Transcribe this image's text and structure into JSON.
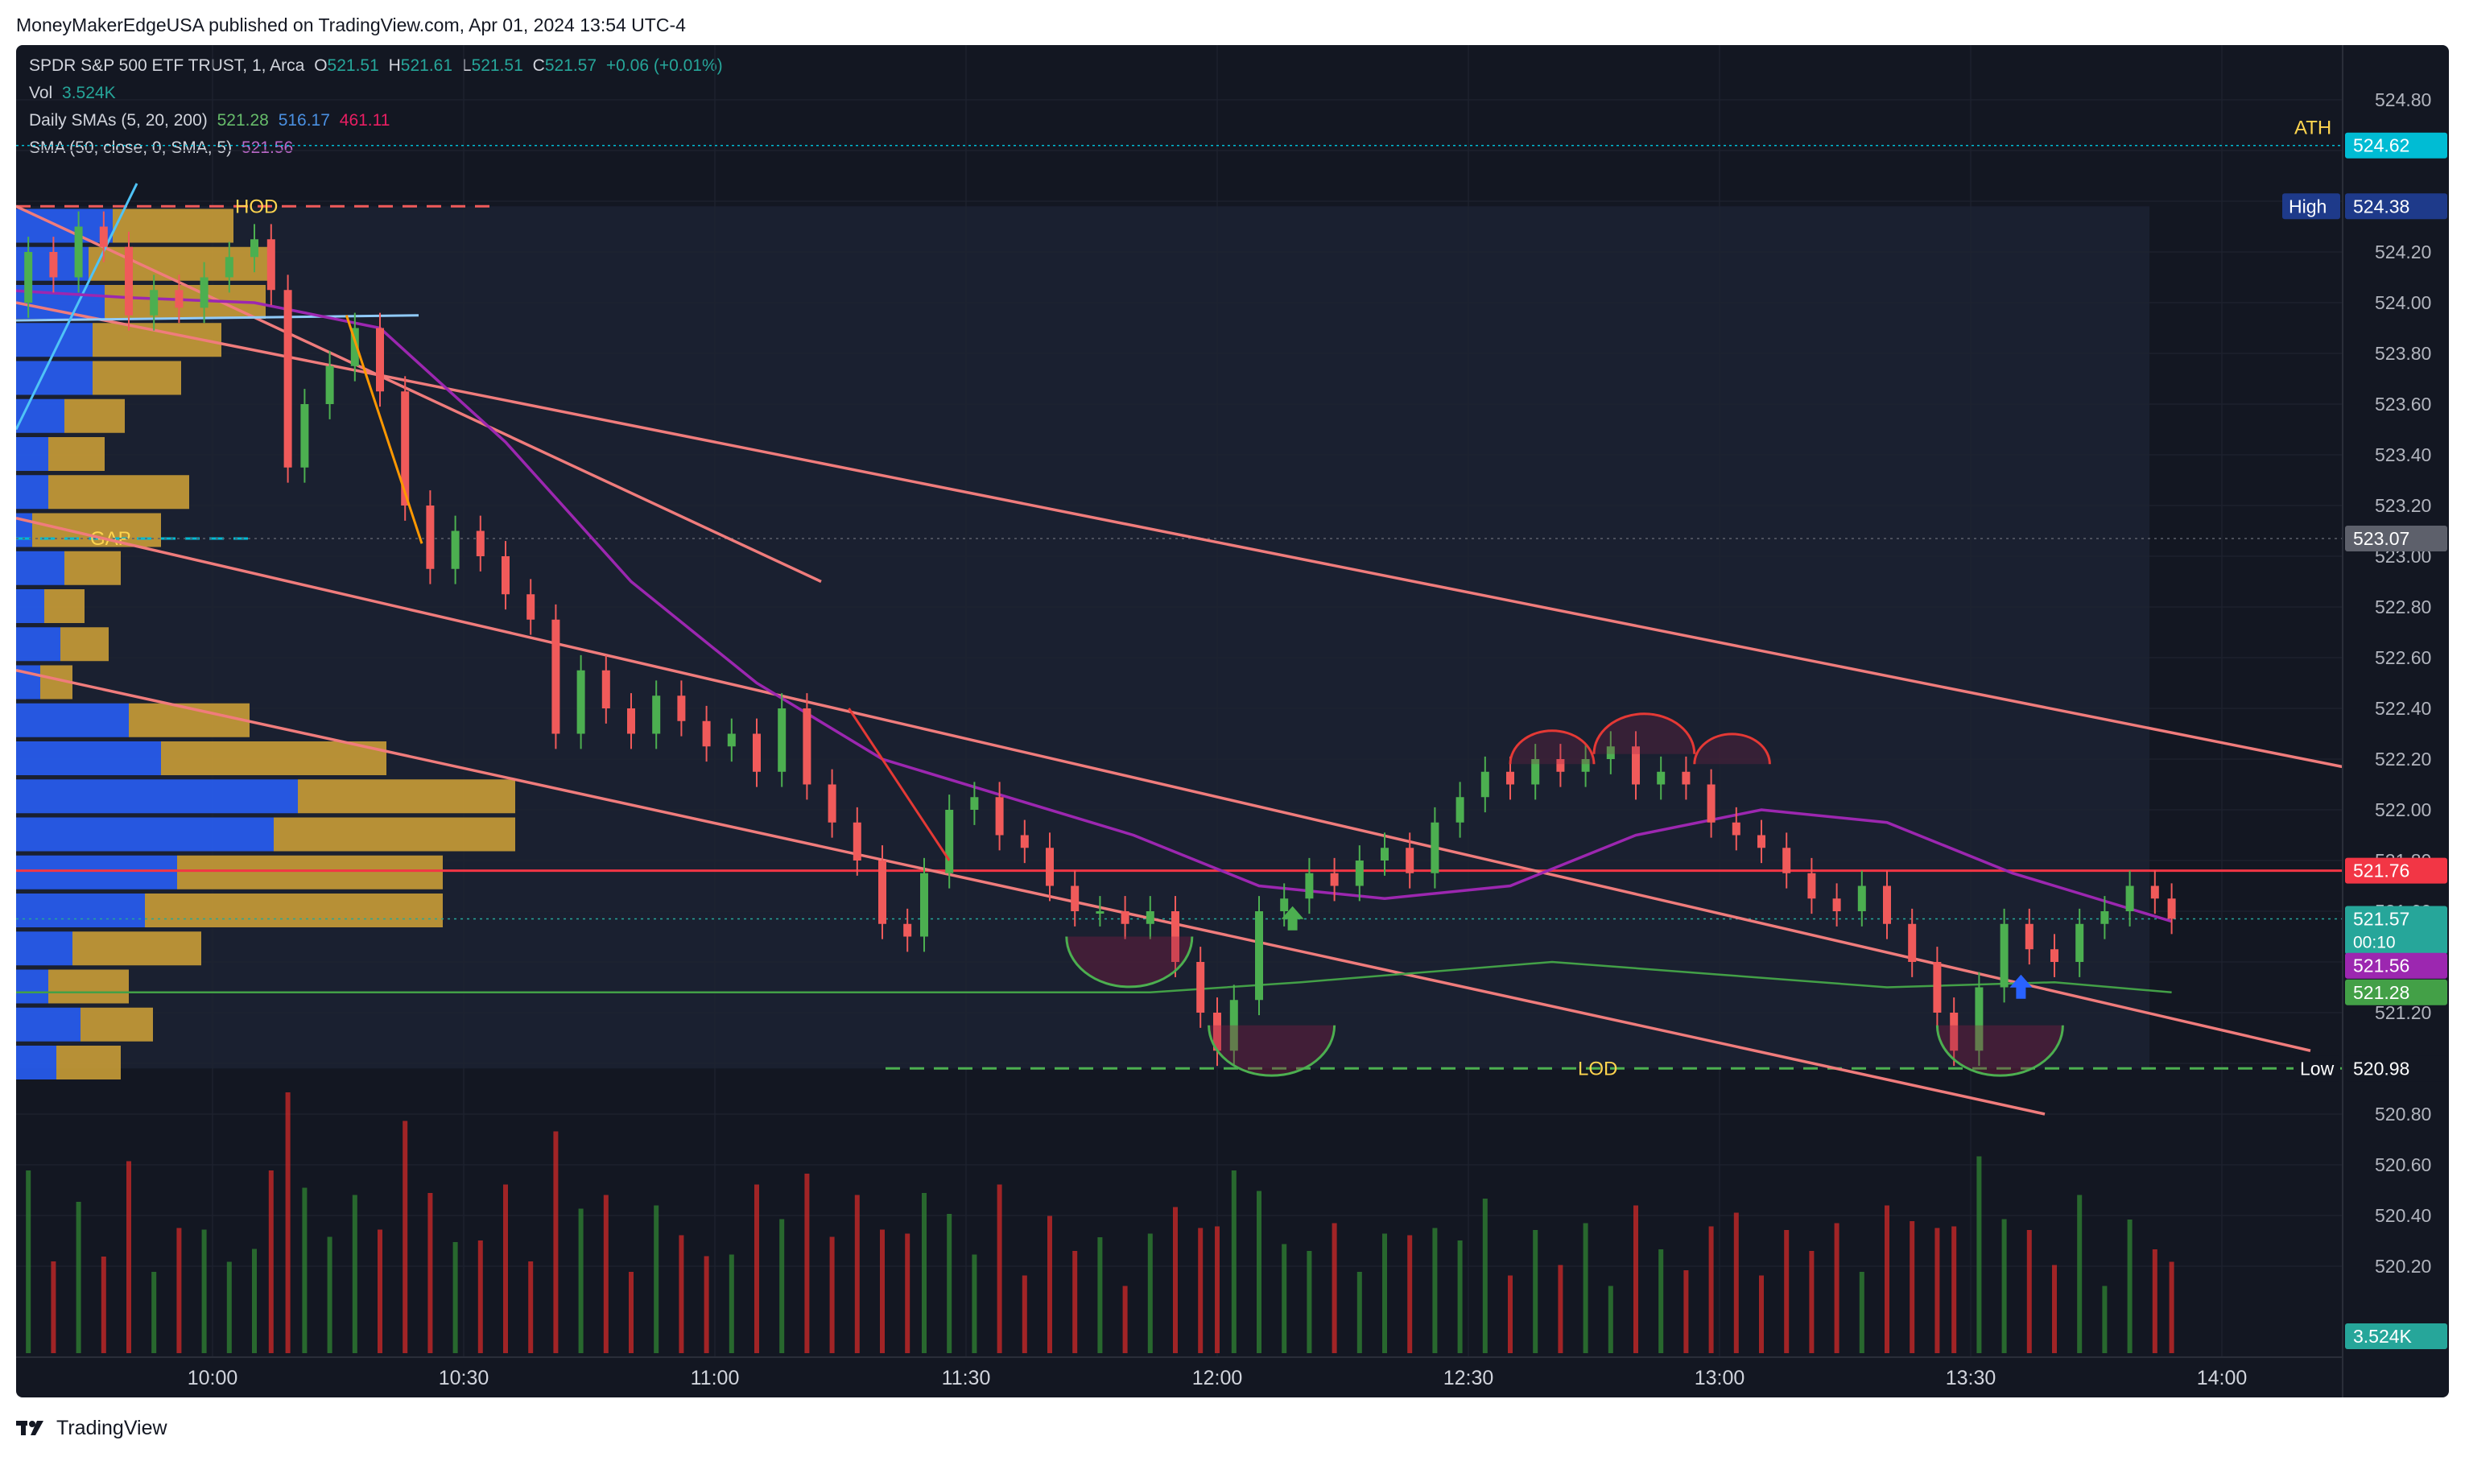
{
  "publisher_line": "MoneyMakerEdgeUSA published on TradingView.com, Apr 01, 2024 13:54 UTC-4",
  "legend": {
    "symbol": "SPDR S&P 500 ETF TRUST, 1, Arca",
    "ohlc": {
      "o_label": "O",
      "o": "521.51",
      "h_label": "H",
      "h": "521.61",
      "l_label": "L",
      "l": "521.51",
      "c_label": "C",
      "c": "521.57",
      "chg": "+0.06 (+0.01%)"
    },
    "vol_label": "Vol",
    "vol": "3.524K",
    "daily_smas_label": "Daily SMAs (5, 20, 200)",
    "daily_smas": [
      "521.28",
      "516.17",
      "461.11"
    ],
    "sma_label": "SMA (50, close, 0, SMA, 5)",
    "sma_value": "521.56"
  },
  "footer": {
    "brand": "TradingView"
  },
  "colors": {
    "background": "#131722",
    "up": "#26a69a",
    "down": "#ef5350",
    "up_candle": "#4caf50",
    "down_candle": "#f05a5a",
    "trendline": "#f07c7c",
    "sma50": "#9c27b0",
    "sma_daily5": "#43a047",
    "orange": "#ff9800",
    "vp_blue": "#2962ff",
    "vp_gold": "#d4a537"
  },
  "annotations": [
    "HOD",
    "GAP",
    "LOD",
    "ATH"
  ],
  "chart_data": {
    "type": "candlestick",
    "symbol": "SPY",
    "interval": "1",
    "y_axis": {
      "min": 520.2,
      "max": 524.9,
      "ticks": [
        "524.80",
        "524.60",
        "524.40",
        "524.20",
        "524.00",
        "523.80",
        "523.60",
        "523.40",
        "523.20",
        "523.00",
        "522.80",
        "522.60",
        "522.40",
        "522.20",
        "522.00",
        "521.80",
        "521.60",
        "521.40",
        "521.20",
        "521.00",
        "520.80",
        "520.60",
        "520.40",
        "520.20"
      ]
    },
    "x_axis": {
      "start": "09:35",
      "end": "14:20",
      "ticks": [
        "10:00",
        "10:30",
        "11:00",
        "11:30",
        "12:00",
        "12:30",
        "13:00",
        "13:30",
        "14:00"
      ]
    },
    "price_badges": [
      {
        "label": "ATH",
        "value": "524.62",
        "color": "#00bcd4"
      },
      {
        "label": "High",
        "value": "524.38",
        "color": "#1e3a8a"
      },
      {
        "label": "",
        "value": "523.07",
        "color": "#5d606b"
      },
      {
        "label": "",
        "value": "521.76",
        "color": "#f23645"
      },
      {
        "label": "",
        "value": "521.57",
        "sub": "00:10",
        "color": "#26a69a"
      },
      {
        "label": "",
        "value": "521.56",
        "color": "#9c27b0"
      },
      {
        "label": "",
        "value": "521.28",
        "color": "#43a047"
      },
      {
        "label": "Low",
        "value": "520.98",
        "color": "#131722"
      },
      {
        "label": "",
        "value": "3.524K",
        "color": "#26a69a"
      }
    ],
    "levels": {
      "hod": 524.38,
      "low": 520.98,
      "ath": 524.62,
      "gap": 523.07,
      "resistance": 521.76
    },
    "close_path": [
      [
        "09:35",
        524.0
      ],
      [
        "09:38",
        524.2
      ],
      [
        "09:41",
        524.1
      ],
      [
        "09:44",
        524.3
      ],
      [
        "09:47",
        524.22
      ],
      [
        "09:50",
        523.95
      ],
      [
        "09:53",
        524.05
      ],
      [
        "09:56",
        523.98
      ],
      [
        "09:59",
        524.1
      ],
      [
        "10:02",
        524.18
      ],
      [
        "10:05",
        524.25
      ],
      [
        "10:07",
        524.05
      ],
      [
        "10:09",
        523.35
      ],
      [
        "10:11",
        523.6
      ],
      [
        "10:14",
        523.75
      ],
      [
        "10:17",
        523.9
      ],
      [
        "10:20",
        523.65
      ],
      [
        "10:23",
        523.2
      ],
      [
        "10:26",
        522.95
      ],
      [
        "10:29",
        523.1
      ],
      [
        "10:32",
        523.0
      ],
      [
        "10:35",
        522.85
      ],
      [
        "10:38",
        522.75
      ],
      [
        "10:41",
        522.3
      ],
      [
        "10:44",
        522.55
      ],
      [
        "10:47",
        522.4
      ],
      [
        "10:50",
        522.3
      ],
      [
        "10:53",
        522.45
      ],
      [
        "10:56",
        522.35
      ],
      [
        "10:59",
        522.25
      ],
      [
        "11:02",
        522.3
      ],
      [
        "11:05",
        522.15
      ],
      [
        "11:08",
        522.4
      ],
      [
        "11:11",
        522.1
      ],
      [
        "11:14",
        521.95
      ],
      [
        "11:17",
        521.8
      ],
      [
        "11:20",
        521.55
      ],
      [
        "11:23",
        521.5
      ],
      [
        "11:25",
        521.75
      ],
      [
        "11:28",
        522.0
      ],
      [
        "11:31",
        522.05
      ],
      [
        "11:34",
        521.9
      ],
      [
        "11:37",
        521.85
      ],
      [
        "11:40",
        521.7
      ],
      [
        "11:43",
        521.6
      ],
      [
        "11:46",
        521.6
      ],
      [
        "11:49",
        521.55
      ],
      [
        "11:52",
        521.6
      ],
      [
        "11:55",
        521.4
      ],
      [
        "11:58",
        521.2
      ],
      [
        "12:00",
        521.05
      ],
      [
        "12:02",
        521.25
      ],
      [
        "12:05",
        521.6
      ],
      [
        "12:08",
        521.65
      ],
      [
        "12:11",
        521.75
      ],
      [
        "12:14",
        521.7
      ],
      [
        "12:17",
        521.8
      ],
      [
        "12:20",
        521.85
      ],
      [
        "12:23",
        521.75
      ],
      [
        "12:26",
        521.95
      ],
      [
        "12:29",
        522.05
      ],
      [
        "12:32",
        522.15
      ],
      [
        "12:35",
        522.1
      ],
      [
        "12:38",
        522.2
      ],
      [
        "12:41",
        522.15
      ],
      [
        "12:44",
        522.2
      ],
      [
        "12:47",
        522.25
      ],
      [
        "12:50",
        522.1
      ],
      [
        "12:53",
        522.15
      ],
      [
        "12:56",
        522.1
      ],
      [
        "12:59",
        521.95
      ],
      [
        "13:02",
        521.9
      ],
      [
        "13:05",
        521.85
      ],
      [
        "13:08",
        521.75
      ],
      [
        "13:11",
        521.65
      ],
      [
        "13:14",
        521.6
      ],
      [
        "13:17",
        521.7
      ],
      [
        "13:20",
        521.55
      ],
      [
        "13:23",
        521.4
      ],
      [
        "13:26",
        521.2
      ],
      [
        "13:28",
        521.05
      ],
      [
        "13:31",
        521.3
      ],
      [
        "13:34",
        521.55
      ],
      [
        "13:37",
        521.45
      ],
      [
        "13:40",
        521.4
      ],
      [
        "13:43",
        521.55
      ],
      [
        "13:46",
        521.6
      ],
      [
        "13:49",
        521.7
      ],
      [
        "13:52",
        521.65
      ],
      [
        "13:54",
        521.57
      ]
    ],
    "sma50_path": [
      [
        "09:35",
        524.05
      ],
      [
        "09:50",
        524.02
      ],
      [
        "10:05",
        524.0
      ],
      [
        "10:20",
        523.9
      ],
      [
        "10:35",
        523.45
      ],
      [
        "10:50",
        522.9
      ],
      [
        "11:05",
        522.5
      ],
      [
        "11:20",
        522.2
      ],
      [
        "11:35",
        522.05
      ],
      [
        "11:50",
        521.9
      ],
      [
        "12:05",
        521.7
      ],
      [
        "12:20",
        521.65
      ],
      [
        "12:35",
        521.7
      ],
      [
        "12:50",
        521.9
      ],
      [
        "13:05",
        522.0
      ],
      [
        "13:20",
        521.95
      ],
      [
        "13:35",
        521.75
      ],
      [
        "13:50",
        521.6
      ],
      [
        "13:54",
        521.56
      ]
    ],
    "daily5_path": [
      [
        "09:35",
        521.28
      ],
      [
        "11:52",
        521.28
      ],
      [
        "12:10",
        521.32
      ],
      [
        "12:40",
        521.4
      ],
      [
        "13:00",
        521.35
      ],
      [
        "13:20",
        521.3
      ],
      [
        "13:40",
        521.32
      ],
      [
        "13:54",
        521.28
      ]
    ],
    "volume": {
      "latest": "3.524K"
    }
  }
}
